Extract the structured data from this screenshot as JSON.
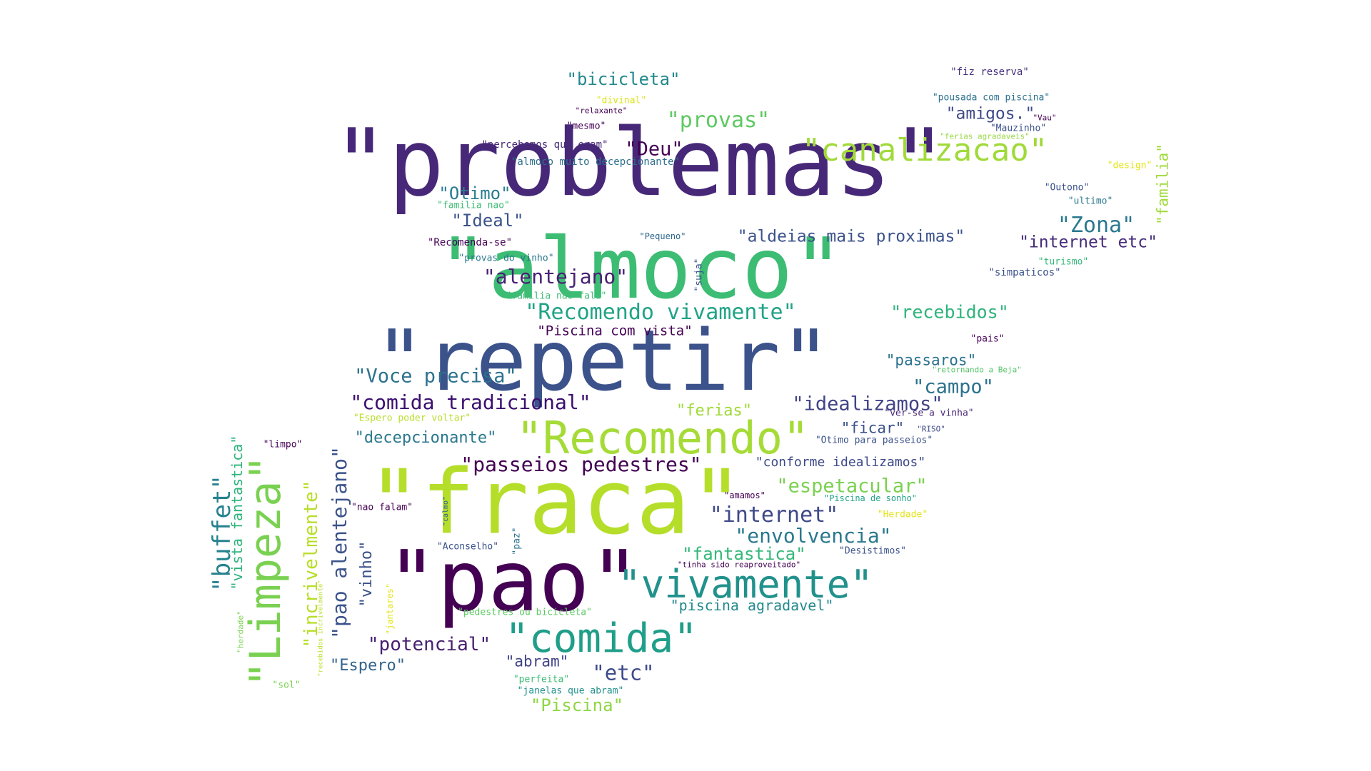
{
  "words": [
    {
      "text": "\"problemas\"",
      "color": "#472878"
    },
    {
      "text": "\"almoco\"",
      "color": "#3dbc74"
    },
    {
      "text": "\"repetir\"",
      "color": "#3b528b"
    },
    {
      "text": "\"fraca\"",
      "color": "#b5de2b"
    },
    {
      "text": "\"pao\"",
      "color": "#440154"
    },
    {
      "text": "\"Recomendo\"",
      "color": "#a5db36"
    },
    {
      "text": "\"vivamente\"",
      "color": "#21918c"
    },
    {
      "text": "\"comida\"",
      "color": "#1f9e89"
    },
    {
      "text": "\"Limpeza\"",
      "color": "#7ad151"
    },
    {
      "text": "\"canalizacao\"",
      "color": "#a0da39"
    },
    {
      "text": "\"buffet\"",
      "color": "#26828e"
    },
    {
      "text": "\"Recomendo vivamente\"",
      "color": "#20a386"
    },
    {
      "text": "\"alentejano\"",
      "color": "#482173"
    },
    {
      "text": "\"passeios pedestres\"",
      "color": "#440154"
    },
    {
      "text": "\"comida tradicional\"",
      "color": "#3b0f70"
    },
    {
      "text": "\"internet\"",
      "color": "#3e4989"
    },
    {
      "text": "\"envolvencia\"",
      "color": "#2a788e"
    },
    {
      "text": "\"espetacular\"",
      "color": "#7ad151"
    },
    {
      "text": "\"Voce precisa\"",
      "color": "#2c728e"
    },
    {
      "text": "\"idealizamos\"",
      "color": "#414487"
    },
    {
      "text": "\"Zona\"",
      "color": "#2a788e"
    },
    {
      "text": "\"aldeias mais proximas\"",
      "color": "#3b528b"
    },
    {
      "text": "\"internet etc\"",
      "color": "#472d7b"
    },
    {
      "text": "\"recebidos\"",
      "color": "#2fb47c"
    },
    {
      "text": "\"campo\"",
      "color": "#2c728e"
    },
    {
      "text": "\"provas\"",
      "color": "#5ec962"
    },
    {
      "text": "\"bicicleta\"",
      "color": "#23898e"
    },
    {
      "text": "\"Deu\"",
      "color": "#440154"
    },
    {
      "text": "\"Otimo\"",
      "color": "#287c8e"
    },
    {
      "text": "\"Ideal\"",
      "color": "#3b528b"
    },
    {
      "text": "\"amigos.\"",
      "color": "#3e4a89"
    },
    {
      "text": "\"pao alentejano\"",
      "color": "#3b528b"
    },
    {
      "text": "\"incrivelmente\"",
      "color": "#b8de29"
    },
    {
      "text": "\"vista fantastica\"",
      "color": "#2fb47c"
    },
    {
      "text": "\"vinho\"",
      "color": "#3b528b"
    },
    {
      "text": "\"fantastica\"",
      "color": "#35b779"
    },
    {
      "text": "\"piscina agradavel\"",
      "color": "#23898e"
    },
    {
      "text": "\"potencial\"",
      "color": "#481f70"
    },
    {
      "text": "\"etc\"",
      "color": "#3e4a89"
    },
    {
      "text": "\"abram\"",
      "color": "#414487"
    },
    {
      "text": "\"Espero\"",
      "color": "#33638d"
    },
    {
      "text": "\"Piscina\"",
      "color": "#8fd744"
    },
    {
      "text": "\"ferias\"",
      "color": "#a0da39"
    },
    {
      "text": "\"ficar\"",
      "color": "#3b528b"
    },
    {
      "text": "\"passaros\"",
      "color": "#2c728e"
    },
    {
      "text": "\"decepcionante\"",
      "color": "#2a788e"
    },
    {
      "text": "\"conforme idealizamos\"",
      "color": "#3e4a89"
    },
    {
      "text": "\"Piscina com vista\"",
      "color": "#440154"
    },
    {
      "text": "\"familia\"",
      "color": "#a0da39"
    },
    {
      "text": "\"fiz reserva\"",
      "color": "#46327e"
    },
    {
      "text": "\"divinal\"",
      "color": "#dde318"
    },
    {
      "text": "\"relaxante\"",
      "color": "#440154"
    },
    {
      "text": "\"mesmo\"",
      "color": "#440154"
    },
    {
      "text": "\"pousada com piscina\"",
      "color": "#2c728e"
    },
    {
      "text": "\"Vau\"",
      "color": "#440154"
    },
    {
      "text": "\"Mauzinho\"",
      "color": "#3b528b"
    },
    {
      "text": "\"ferias agradaveis\"",
      "color": "#95d840"
    },
    {
      "text": "\"design\"",
      "color": "#e5e419"
    },
    {
      "text": "\"percebemos que eram\"",
      "color": "#482878"
    },
    {
      "text": "\"almoco muito decepcionante\"",
      "color": "#2d708e"
    },
    {
      "text": "\"familia nao\"",
      "color": "#3dbc74"
    },
    {
      "text": "\"Outono\"",
      "color": "#3b528b"
    },
    {
      "text": "\"ultimo\"",
      "color": "#2a788e"
    },
    {
      "text": "\"Pequeno\"",
      "color": "#31688e"
    },
    {
      "text": "\"Recomenda-se\"",
      "color": "#440154"
    },
    {
      "text": "\"provas do vinho\"",
      "color": "#2a788e"
    },
    {
      "text": "\"turismo\"",
      "color": "#35b779"
    },
    {
      "text": "\"simpaticos\"",
      "color": "#3b528b"
    },
    {
      "text": "\"familia nao fala\"",
      "color": "#3dbc74"
    },
    {
      "text": "\"suja\"",
      "color": "#3b528b"
    },
    {
      "text": "\"pais\"",
      "color": "#440154"
    },
    {
      "text": "\"retornando a Beja\"",
      "color": "#54c568"
    },
    {
      "text": "\"Espero poder voltar\"",
      "color": "#b8de29"
    },
    {
      "text": "\"ver-se a vinha\"",
      "color": "#482878"
    },
    {
      "text": "\"RISO\"",
      "color": "#3e4a89"
    },
    {
      "text": "\"limpo\"",
      "color": "#440154"
    },
    {
      "text": "\"Otimo para passeios\"",
      "color": "#3b528b"
    },
    {
      "text": "\"amamos\"",
      "color": "#440154"
    },
    {
      "text": "\"Piscina de sonho\"",
      "color": "#20a386"
    },
    {
      "text": "\"nao falam\"",
      "color": "#440154"
    },
    {
      "text": "\"calmo\"",
      "color": "#33638d"
    },
    {
      "text": "\"Herdade\"",
      "color": "#e5e419"
    },
    {
      "text": "\"Aconselho\"",
      "color": "#3b528b"
    },
    {
      "text": "\"paz\"",
      "color": "#2c728e"
    },
    {
      "text": "\"Desistimos\"",
      "color": "#3b528b"
    },
    {
      "text": "\"tinha sido reaproveitado\"",
      "color": "#440154"
    },
    {
      "text": "\"herdade\"",
      "color": "#7ad151"
    },
    {
      "text": "\"jantares\"",
      "color": "#e5e419"
    },
    {
      "text": "\"recebidos incrivelmente\"",
      "color": "#b8de29"
    },
    {
      "text": "\"pedestres ou bicicleta\"",
      "color": "#5ec962"
    },
    {
      "text": "\"sol\"",
      "color": "#7ad151"
    },
    {
      "text": "\"perfeita\"",
      "color": "#3dbc74"
    },
    {
      "text": "\"janelas que abram\"",
      "color": "#21918c"
    }
  ]
}
